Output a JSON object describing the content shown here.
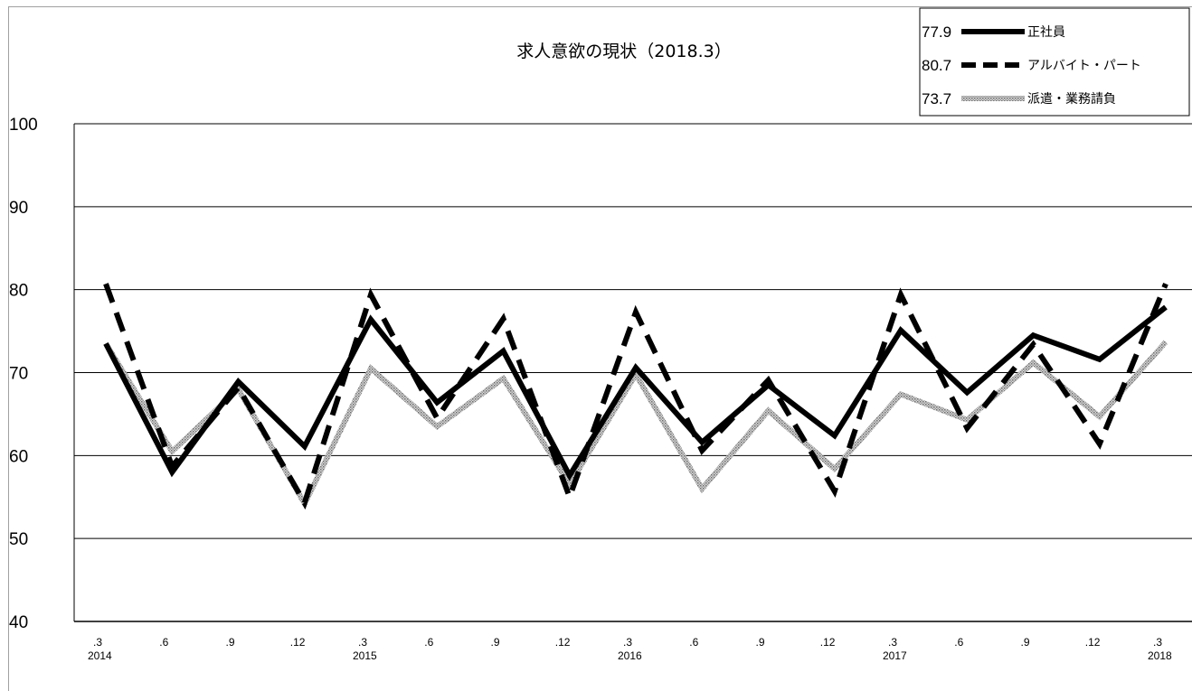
{
  "chart_data": {
    "type": "line",
    "title": "求人意欲の現状（2018.3）",
    "ylim": [
      40,
      100
    ],
    "yticks": [
      "100",
      "90",
      "80",
      "70",
      "60",
      "50",
      "40"
    ],
    "x_month_labels": [
      ".3",
      ".6",
      ".9",
      ".12",
      ".3",
      ".6",
      ".9",
      ".12",
      ".3",
      ".6",
      ".9",
      ".12",
      ".3",
      ".6",
      ".9",
      ".12",
      ".3"
    ],
    "x_year_labels": [
      "2014",
      "2015",
      "2016",
      "2017",
      "2018"
    ],
    "x": [
      "2014.3",
      "2014.6",
      "2014.9",
      "2014.12",
      "2015.3",
      "2015.6",
      "2015.9",
      "2015.12",
      "2016.3",
      "2016.6",
      "2016.9",
      "2016.12",
      "2017.3",
      "2017.6",
      "2017.9",
      "2017.12",
      "2018.3"
    ],
    "grid": true,
    "legend_position": "top-right",
    "series": [
      {
        "name": "正社員",
        "latest": "77.9",
        "style": "solid",
        "color": "#000000",
        "values": [
          73.5,
          58.0,
          68.9,
          61.1,
          76.4,
          66.4,
          72.6,
          57.6,
          70.6,
          61.6,
          68.5,
          62.4,
          75.1,
          67.6,
          74.5,
          71.6,
          77.9
        ]
      },
      {
        "name": "アルバイト・パート",
        "latest": "80.7",
        "style": "dashed",
        "color": "#000000",
        "values": [
          80.7,
          58.7,
          68.2,
          54.3,
          79.4,
          64.5,
          76.5,
          55.0,
          77.3,
          60.6,
          69.1,
          55.7,
          79.4,
          63.3,
          73.4,
          61.4,
          80.7
        ]
      },
      {
        "name": "派遣・業務請負",
        "latest": "73.7",
        "style": "hatched",
        "color": "#a0a0a0",
        "values": [
          73.5,
          60.5,
          68.0,
          54.2,
          70.5,
          63.5,
          69.3,
          56.5,
          69.8,
          56.0,
          65.4,
          58.4,
          67.4,
          64.3,
          71.2,
          64.7,
          73.7
        ]
      }
    ]
  }
}
